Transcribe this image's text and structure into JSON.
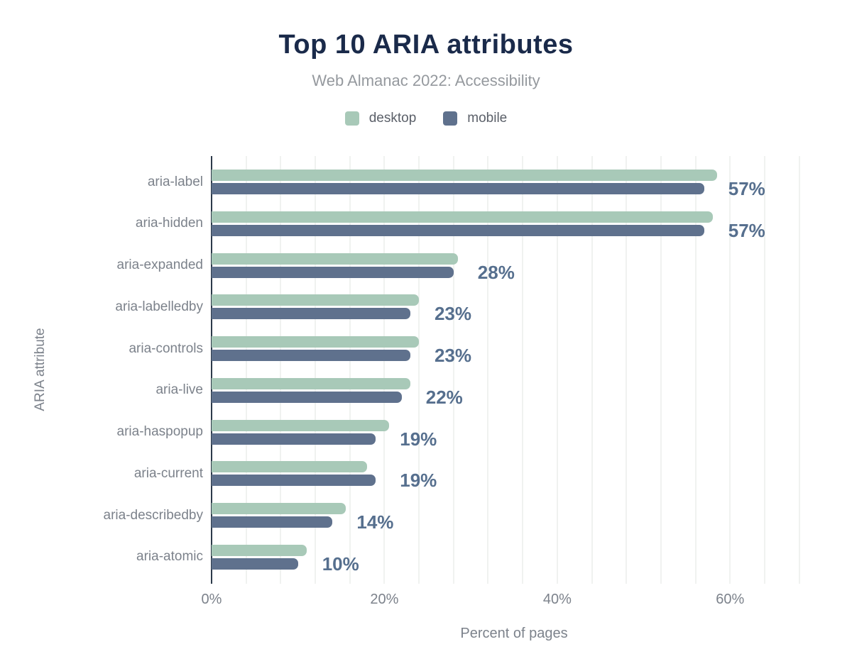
{
  "title": "Top 10 ARIA attributes",
  "subtitle": "Web Almanac 2022: Accessibility",
  "colors": {
    "bg": "#ffffff",
    "title-color": "#1a2a4a",
    "subtitle-color": "#95999e",
    "legend-color": "#5b6069",
    "label-color": "#7c828b",
    "value-color": "#566f8e",
    "axis-color": "#2d3a4a",
    "grid-color": "#f0f2f0",
    "desktop-color": "#a8c9b8",
    "mobile-color": "#5f718d"
  },
  "chart_data": {
    "type": "bar",
    "orientation": "horizontal",
    "title": "Top 10 ARIA attributes",
    "subtitle": "Web Almanac 2022: Accessibility",
    "xlabel": "Percent of pages",
    "ylabel": "ARIA attribute",
    "categories": [
      "aria-label",
      "aria-hidden",
      "aria-expanded",
      "aria-labelledby",
      "aria-controls",
      "aria-live",
      "aria-haspopup",
      "aria-current",
      "aria-describedby",
      "aria-atomic"
    ],
    "series": [
      {
        "name": "desktop",
        "color": "#a8c9b8",
        "values": [
          58.5,
          58,
          28.5,
          24,
          24,
          23,
          20.5,
          18,
          15.5,
          11
        ]
      },
      {
        "name": "mobile",
        "color": "#5f718d",
        "values": [
          57,
          57,
          28,
          23,
          23,
          22,
          19,
          19,
          14,
          10
        ]
      }
    ],
    "bar_labels": [
      "57%",
      "57%",
      "28%",
      "23%",
      "23%",
      "22%",
      "19%",
      "19%",
      "14%",
      "10%"
    ],
    "bar_labels_series": "mobile",
    "x_ticks": [
      {
        "label": "0%",
        "value": 0
      },
      {
        "label": "20%",
        "value": 20
      },
      {
        "label": "40%",
        "value": 40
      },
      {
        "label": "60%",
        "value": 60
      }
    ],
    "xlim": [
      0,
      70
    ],
    "grid_interval": 4,
    "grid": true,
    "legend_position": "top"
  },
  "legend": [
    {
      "label": "desktop",
      "color": "#a8c9b8"
    },
    {
      "label": "mobile",
      "color": "#5f718d"
    }
  ]
}
